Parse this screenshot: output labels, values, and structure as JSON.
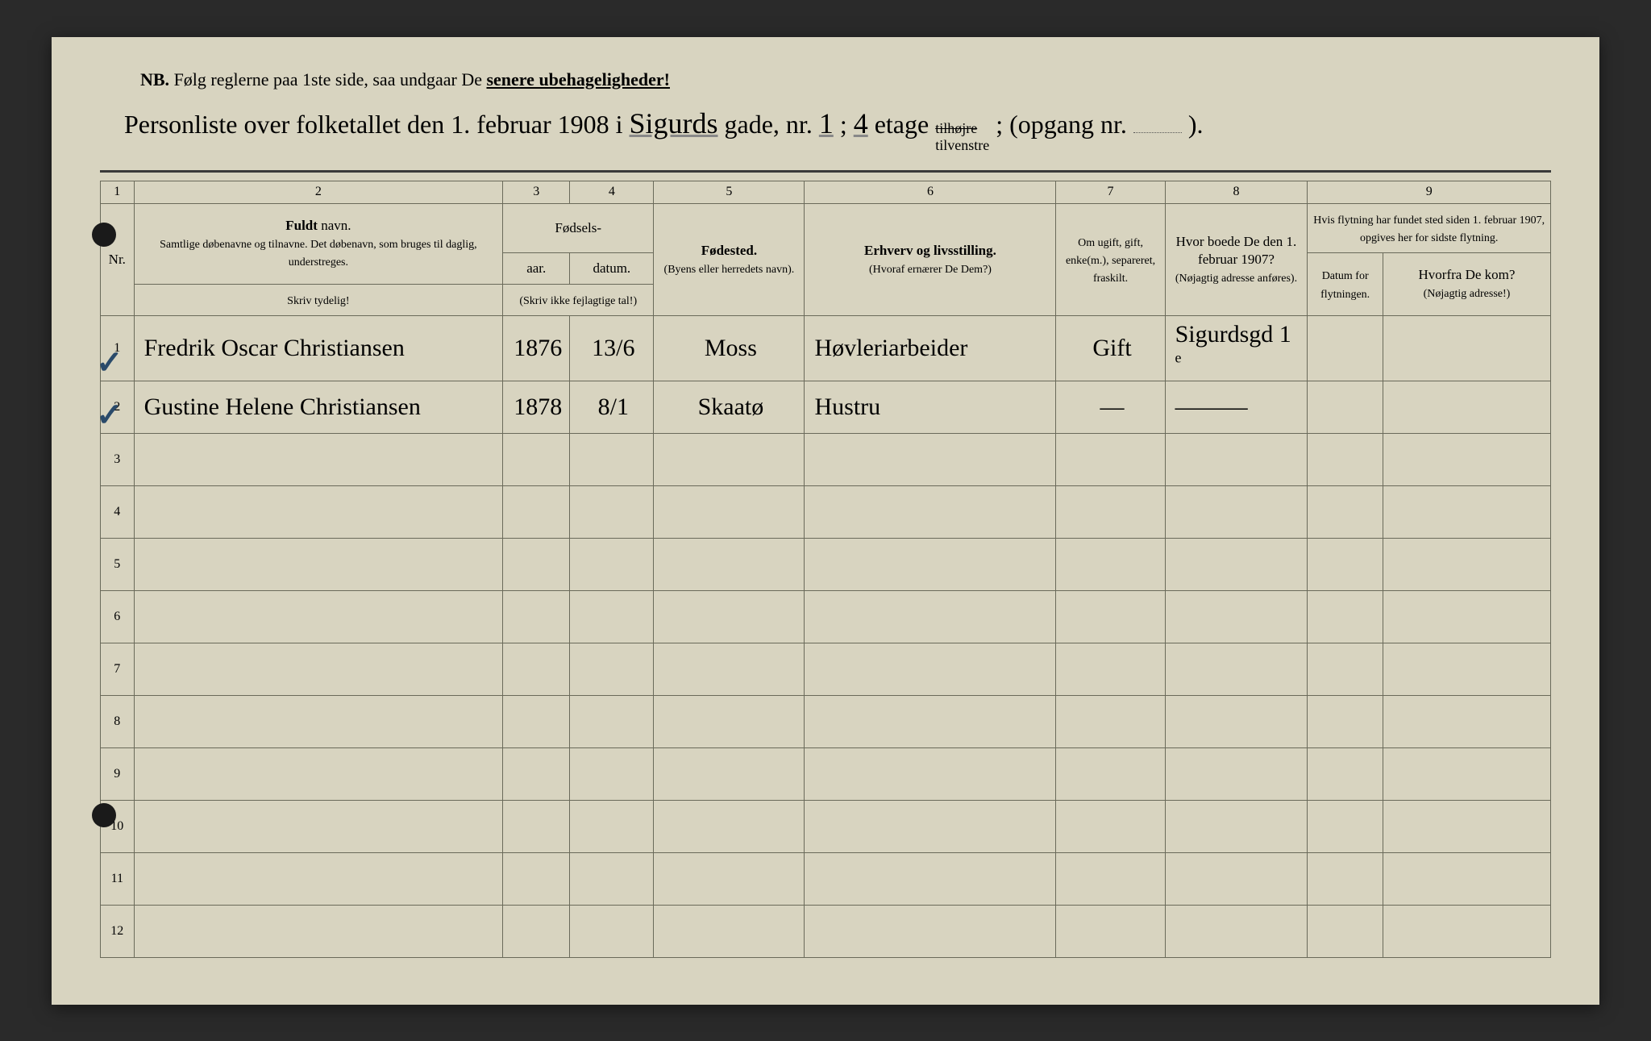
{
  "page": {
    "nb_prefix": "NB.",
    "nb_text": "Følg reglerne paa 1ste side, saa undgaar De",
    "nb_bold": "senere ubehageligheder!",
    "title_printed1": "Personliste over folketallet den 1. februar 1908 i",
    "street_script": "Sigurds",
    "title_printed2": "gade, nr.",
    "nr_script": "1",
    "title_printed3": ";",
    "floor_script": "4",
    "title_printed4": "etage",
    "strike_text": "tilhøjre",
    "tilvenstre": "tilvenstre",
    "title_printed5": "; (opgang nr.",
    "title_end": ")."
  },
  "colnums": [
    "1",
    "2",
    "3",
    "4",
    "5",
    "6",
    "7",
    "8",
    "9"
  ],
  "headers": {
    "nr": "Nr.",
    "name_bold": "Fuldt",
    "name_rest": " navn.",
    "name_sub": "Samtlige døbenavne og tilnavne. Det døbenavn, som bruges til daglig, understreges.",
    "name_note": "Skriv tydelig!",
    "birth": "Fødsels-",
    "year": "aar.",
    "date": "datum.",
    "birth_note": "(Skriv ikke fejlagtige tal!)",
    "place": "Fødested.",
    "place_sub": "(Byens eller herredets navn).",
    "occupation": "Erhverv og livsstilling.",
    "occupation_sub": "(Hvoraf ernærer De Dem?)",
    "marital": "Om ugift, gift, enke(m.), separeret, fraskilt.",
    "prev_addr": "Hvor boede De den 1. februar 1907?",
    "prev_addr_sub": "(Nøjagtig adresse anføres).",
    "move_header": "Hvis flytning har fundet sted siden 1. februar 1907, opgives her for sidste flytning.",
    "move_date": "Datum for flytningen.",
    "move_from": "Hvorfra De kom?",
    "move_from_sub": "(Nøjagtig adresse!)"
  },
  "rows": [
    {
      "nr": "1",
      "name": "Fredrik Oscar Christiansen",
      "year": "1876",
      "date": "13/6",
      "place": "Moss",
      "occupation": "Høvleriarbeider",
      "marital": "Gift",
      "prev": "Sigurdsgd 1 ᵉ",
      "movedate": "",
      "movefrom": ""
    },
    {
      "nr": "2",
      "name": "Gustine Helene Christiansen",
      "year": "1878",
      "date": "8/1",
      "place": "Skaatø",
      "occupation": "Hustru",
      "marital": "—",
      "prev": "———",
      "movedate": "",
      "movefrom": ""
    }
  ],
  "empty_rows": [
    "3",
    "4",
    "5",
    "6",
    "7",
    "8",
    "9",
    "10",
    "11",
    "12"
  ],
  "styling": {
    "paper_bg": "#d8d4c0",
    "border_color": "#6a6a5a",
    "text_color": "#2a2a2a",
    "script_color": "#2a2a2a",
    "check_color": "#2a4a6a",
    "printed_fontsize": 18,
    "script_fontsize": 30,
    "title_fontsize": 32
  }
}
